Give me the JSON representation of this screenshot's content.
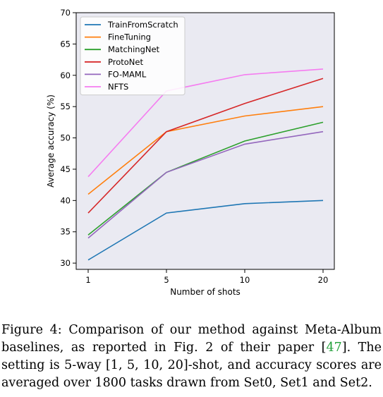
{
  "chart_data": {
    "type": "line",
    "title": "",
    "xlabel": "Number of shots",
    "ylabel": "Average accuracy (%)",
    "categories": [
      "1",
      "5",
      "10",
      "20"
    ],
    "ylim": [
      29,
      70
    ],
    "yticks": [
      30,
      35,
      40,
      45,
      50,
      55,
      60,
      65,
      70
    ],
    "grid": false,
    "background": "#eaeaf2",
    "legend_position": "upper-left",
    "series": [
      {
        "name": "TrainFromScratch",
        "color": "#1f77b4",
        "values": [
          30.5,
          38.0,
          39.5,
          40.0
        ]
      },
      {
        "name": "FineTuning",
        "color": "#ff7f0e",
        "values": [
          41.0,
          51.0,
          53.5,
          55.0
        ]
      },
      {
        "name": "MatchingNet",
        "color": "#2ca02c",
        "values": [
          34.5,
          44.5,
          49.5,
          52.5
        ]
      },
      {
        "name": "ProtoNet",
        "color": "#d62728",
        "values": [
          38.0,
          51.0,
          55.5,
          59.5
        ]
      },
      {
        "name": "FO-MAML",
        "color": "#9467bd",
        "values": [
          34.0,
          44.5,
          49.0,
          51.0
        ]
      },
      {
        "name": "NFTS",
        "color": "#f57cf0",
        "values": [
          43.8,
          57.5,
          60.1,
          61.0
        ]
      }
    ]
  },
  "caption": {
    "prefix": "Figure 4: Comparison of our method against Meta-Album baselines, as reported in Fig. 2 of their paper [",
    "cite": "47",
    "suffix": "]. The setting is 5-way [1, 5, 10, 20]-shot, and accuracy scores are averaged over 1800 tasks drawn from Set0, Set1 and Set2."
  }
}
